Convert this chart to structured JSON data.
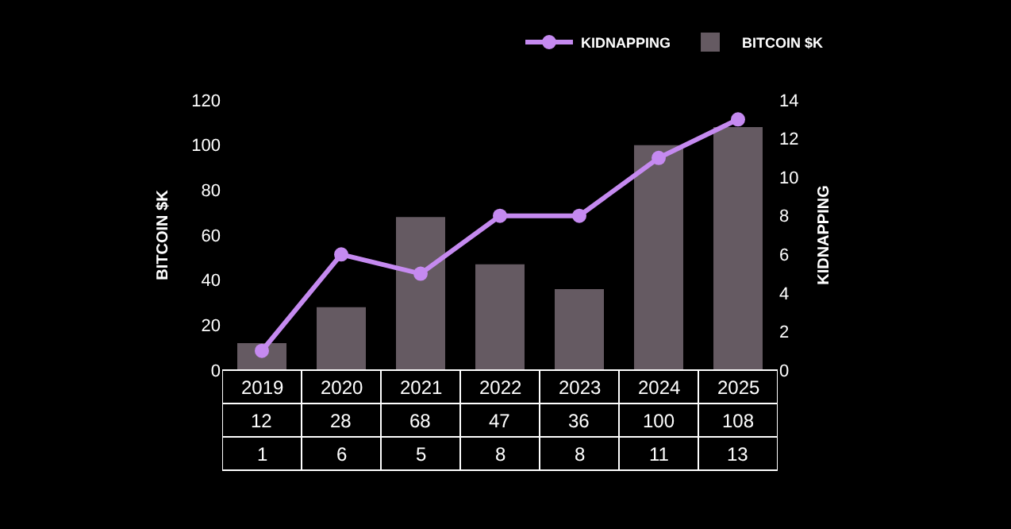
{
  "chart_data": {
    "type": "bar",
    "ylabel": "BITCOIN $K",
    "y2label": "KIDNAPPING",
    "categories": [
      "2019",
      "2020",
      "2021",
      "2022",
      "2023",
      "2024",
      "2025"
    ],
    "series": [
      {
        "name": "KIDNAPPING",
        "type": "line",
        "axis": "y2",
        "color": "#c58af0",
        "marker": "circle",
        "values": [
          1,
          6,
          5,
          8,
          8,
          11,
          13
        ]
      },
      {
        "name": "BITCOIN $K",
        "color": "#655a62",
        "values": [
          12,
          28,
          68,
          47,
          36,
          100,
          108
        ]
      }
    ],
    "ylim": [
      0,
      120
    ],
    "yticks": [
      0,
      20,
      40,
      60,
      80,
      100,
      120
    ],
    "y2lim": [
      0,
      14
    ],
    "y2ticks": [
      0,
      2,
      4,
      6,
      8,
      10,
      12,
      14
    ],
    "data_labels": true,
    "grid": false,
    "legend": "top right"
  }
}
